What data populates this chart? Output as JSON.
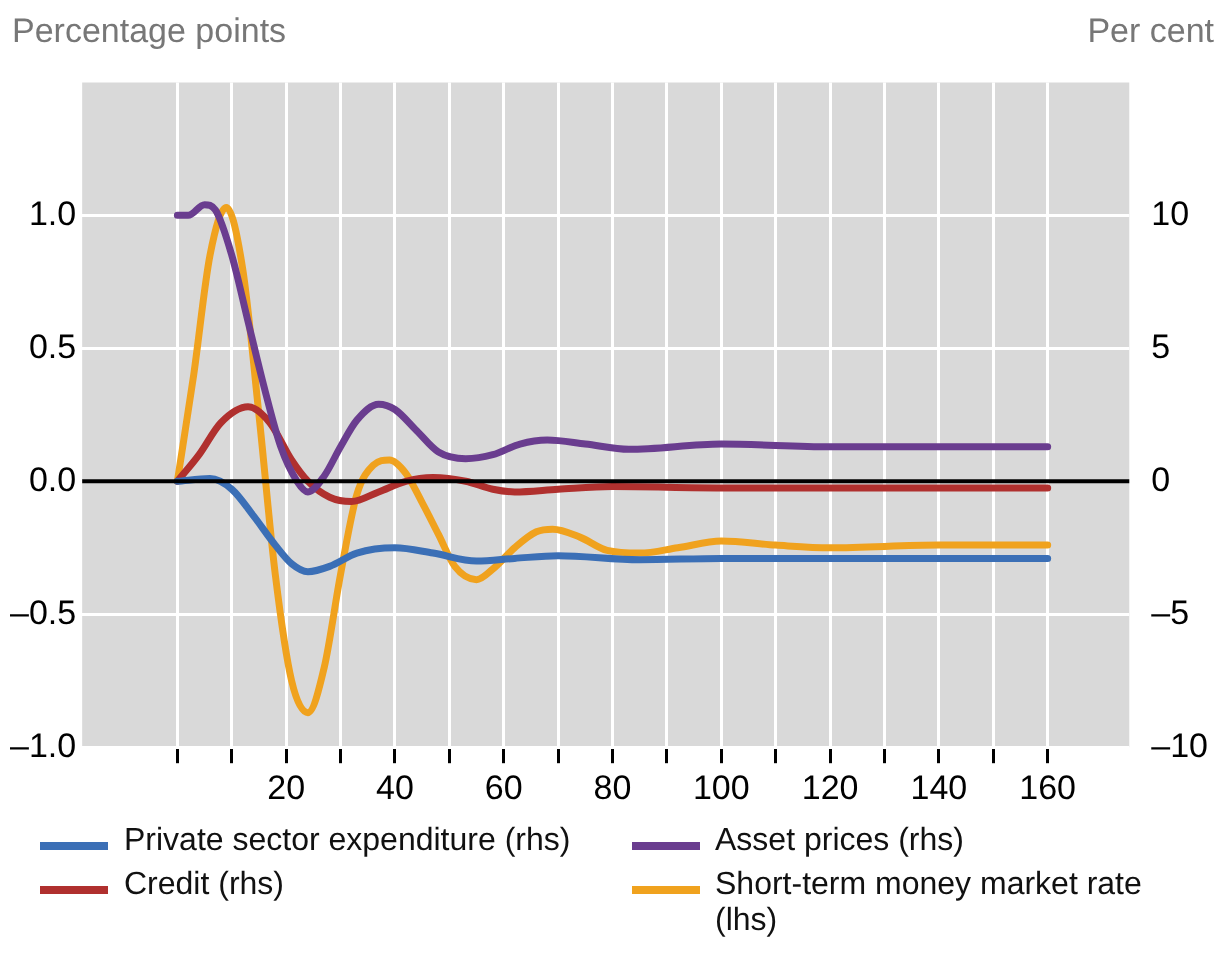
{
  "chart_data": {
    "type": "line",
    "ylabel": "Percentage points",
    "y2label": "Per cent",
    "xlim": [
      -17.5,
      175
    ],
    "xticks": [
      {
        "value": 0,
        "label": null
      },
      {
        "value": 10,
        "label": null
      },
      20,
      {
        "value": 30,
        "label": null
      },
      40,
      {
        "value": 50,
        "label": null
      },
      60,
      {
        "value": 70,
        "label": null
      },
      80,
      {
        "value": 90,
        "label": null
      },
      100,
      {
        "value": 110,
        "label": null
      },
      120,
      {
        "value": 130,
        "label": null
      },
      140,
      {
        "value": 150,
        "label": null
      },
      160
    ],
    "ylim": [
      -1,
      1.5
    ],
    "yticks": [
      {
        "value": -1,
        "label": "–1.0"
      },
      {
        "value": -0.5,
        "label": "–0.5"
      },
      {
        "value": 0,
        "label": "0.0"
      },
      0.5,
      {
        "value": 1,
        "label": "1.0"
      }
    ],
    "y2lim": [
      -10,
      15
    ],
    "y2ticks": [
      {
        "value": -10,
        "label": "–10"
      },
      {
        "value": -5,
        "label": "–5"
      },
      0,
      5,
      10
    ],
    "grid": true,
    "legend": "bottom",
    "marker": "none",
    "line_style": "solid",
    "ref_lines": [
      {
        "axis": "y",
        "value": 0,
        "label": null,
        "color": "#000000"
      }
    ],
    "series": [
      {
        "name": "Private sector expenditure (rhs)",
        "color": "#3b6fb6",
        "axis": "y2",
        "x": [
          0,
          6,
          10,
          14,
          18,
          21,
          24,
          28,
          33,
          40,
          47,
          55,
          62,
          70,
          85,
          100,
          160
        ],
        "values": [
          0,
          0.1,
          -0.3,
          -1.3,
          -2.4,
          -3.1,
          -3.4,
          -3.2,
          -2.7,
          -2.5,
          -2.7,
          -3.0,
          -2.9,
          -2.8,
          -2.95,
          -2.9,
          -2.9
        ]
      },
      {
        "name": "Asset prices (rhs)",
        "color": "#6a3d8f",
        "axis": "y2",
        "x": [
          0,
          2,
          5,
          7,
          10,
          13,
          16,
          19,
          22,
          24,
          27,
          30,
          33,
          37,
          40,
          44,
          48,
          53,
          58,
          63,
          68,
          75,
          83,
          100,
          120,
          160
        ],
        "values": [
          10,
          10,
          10.4,
          10.2,
          8.5,
          6,
          3.5,
          1.3,
          0,
          -0.4,
          0.2,
          1.3,
          2.3,
          2.9,
          2.7,
          1.9,
          1.1,
          0.85,
          1.0,
          1.4,
          1.55,
          1.4,
          1.2,
          1.4,
          1.3,
          1.3
        ]
      },
      {
        "name": "Credit (rhs)",
        "color": "#b0302e",
        "axis": "y2",
        "x": [
          0,
          4,
          8,
          13,
          17,
          21,
          24,
          28,
          32,
          37,
          42,
          47,
          53,
          58,
          62,
          70,
          80,
          100,
          160
        ],
        "values": [
          0,
          1.0,
          2.2,
          2.8,
          2.2,
          0.8,
          0,
          -0.6,
          -0.76,
          -0.4,
          0,
          0.14,
          0,
          -0.3,
          -0.4,
          -0.3,
          -0.2,
          -0.25,
          -0.25
        ]
      },
      {
        "name": "Short-term money market rate (lhs)",
        "color": "#f0a21e",
        "axis": "y",
        "x": [
          0,
          3,
          6,
          9,
          12,
          15,
          18,
          21,
          24,
          27,
          30,
          33,
          36,
          39,
          42,
          45,
          48,
          51,
          55,
          58,
          62,
          66,
          69,
          74,
          79,
          85,
          92,
          100,
          110,
          120,
          140,
          160
        ],
        "values": [
          0,
          0.4,
          0.85,
          1.03,
          0.8,
          0.25,
          -0.35,
          -0.75,
          -0.87,
          -0.7,
          -0.35,
          -0.05,
          0.06,
          0.08,
          0.03,
          -0.08,
          -0.2,
          -0.32,
          -0.37,
          -0.33,
          -0.25,
          -0.19,
          -0.18,
          -0.21,
          -0.26,
          -0.27,
          -0.25,
          -0.225,
          -0.24,
          -0.25,
          -0.24,
          -0.24
        ]
      }
    ]
  }
}
